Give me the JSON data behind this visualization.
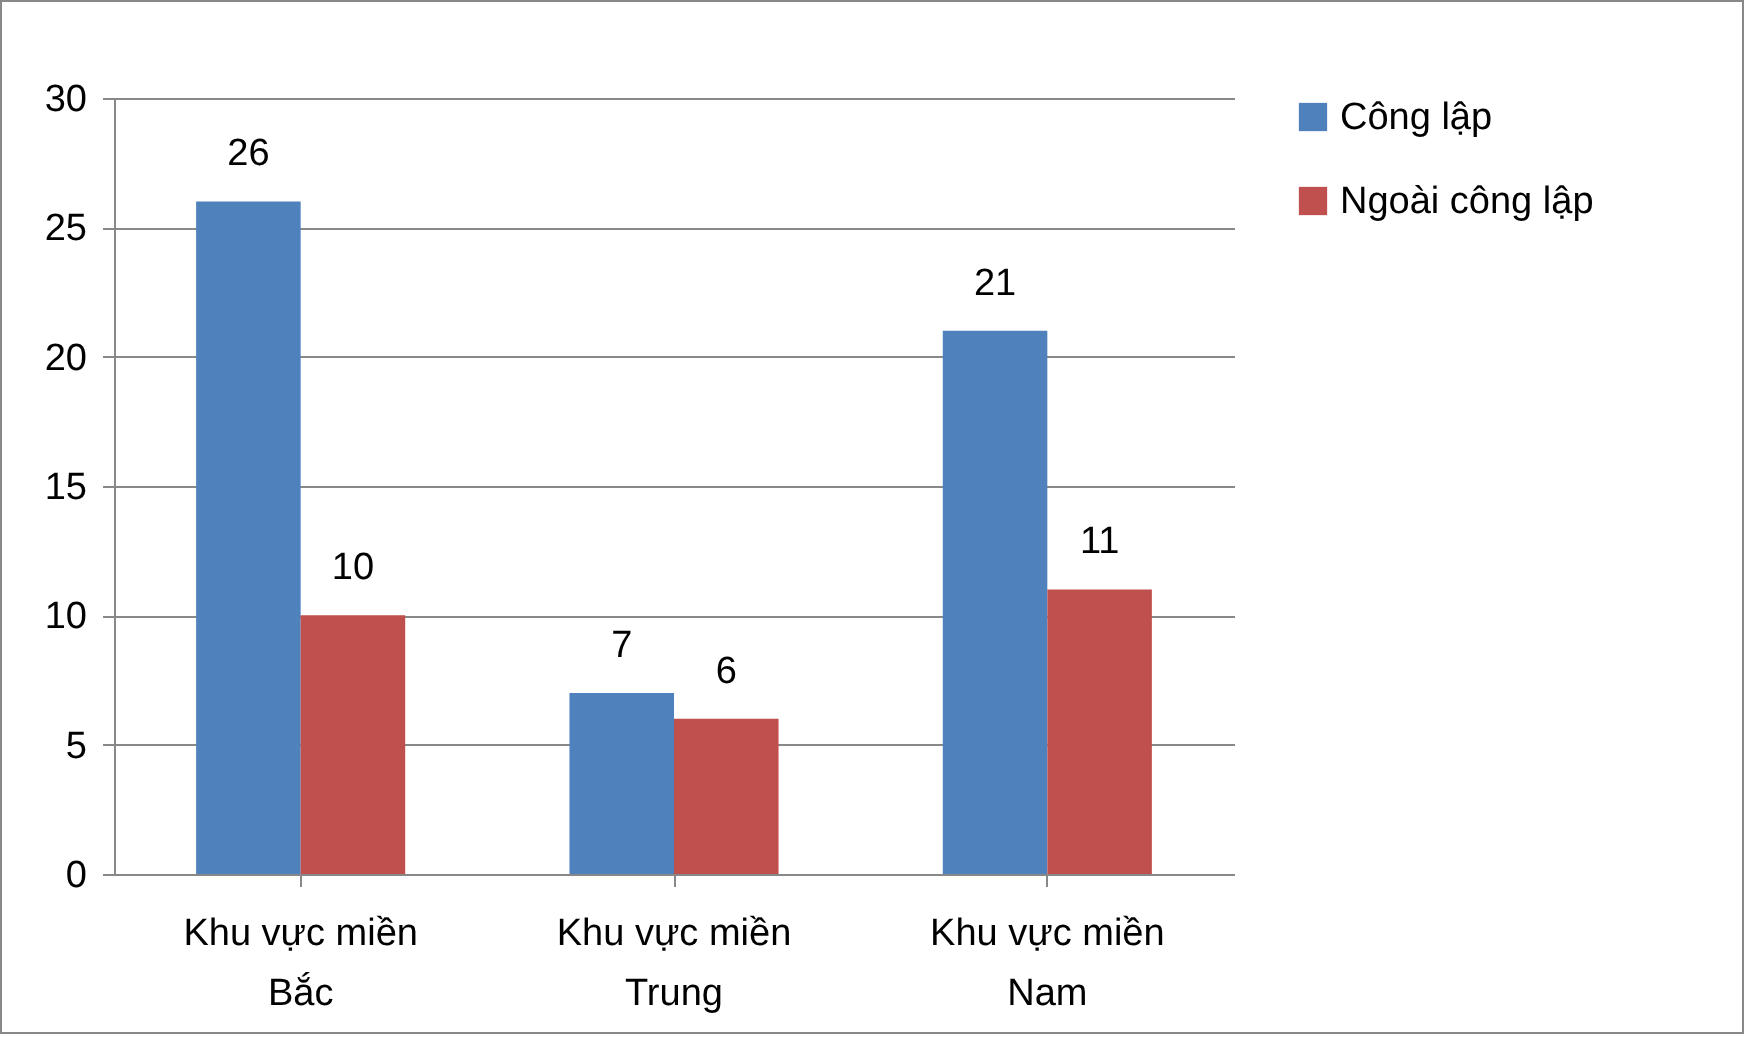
{
  "chart_data": {
    "type": "bar",
    "categories": [
      "Khu vực miền Bắc",
      "Khu vực miền Trung",
      "Khu vực miền Nam"
    ],
    "series": [
      {
        "name": "Công lập",
        "color": "#4f81bd",
        "values": [
          26,
          7,
          21
        ]
      },
      {
        "name": "Ngoài công lập",
        "color": "#c0504d",
        "values": [
          10,
          6,
          11
        ]
      }
    ],
    "ylim": [
      0,
      30
    ],
    "yticks": [
      0,
      5,
      10,
      15,
      20,
      25,
      30
    ],
    "grid": "y",
    "legend": "right",
    "data_labels": true
  }
}
